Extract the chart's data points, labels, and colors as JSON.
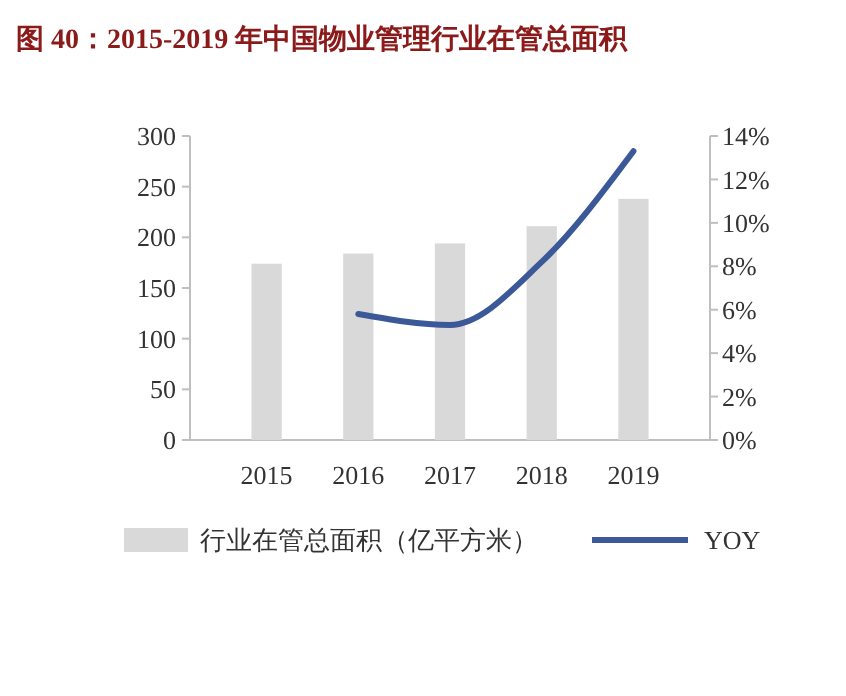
{
  "chart_data": {
    "type": "bar",
    "title": "图 40：2015-2019 年中国物业管理行业在管总面积",
    "categories": [
      "2015",
      "2016",
      "2017",
      "2018",
      "2019"
    ],
    "series": [
      {
        "name": "行业在管总面积（亿平方米）",
        "color": "#d9d9d9",
        "values": [
          174,
          184,
          194,
          211,
          238
        ]
      },
      {
        "name": "YOY",
        "type": "line",
        "axis": "y2",
        "color": "#3b5998",
        "values": [
          null,
          5.8,
          5.3,
          8.2,
          13.3
        ]
      }
    ],
    "ylim": [
      0,
      300
    ],
    "yticks": [
      0,
      50,
      100,
      150,
      200,
      250,
      300
    ],
    "y2lim": [
      0,
      14
    ],
    "y2ticks": [
      {
        "value": 0,
        "label": "0%"
      },
      {
        "value": 2,
        "label": "2%"
      },
      {
        "value": 4,
        "label": "4%"
      },
      {
        "value": 6,
        "label": "6%"
      },
      {
        "value": 8,
        "label": "8%"
      },
      {
        "value": 10,
        "label": "10%"
      },
      {
        "value": 12,
        "label": "12%"
      },
      {
        "value": 14,
        "label": "14%"
      }
    ],
    "legend": "bottom",
    "marker": "none",
    "line_style": "solid"
  }
}
